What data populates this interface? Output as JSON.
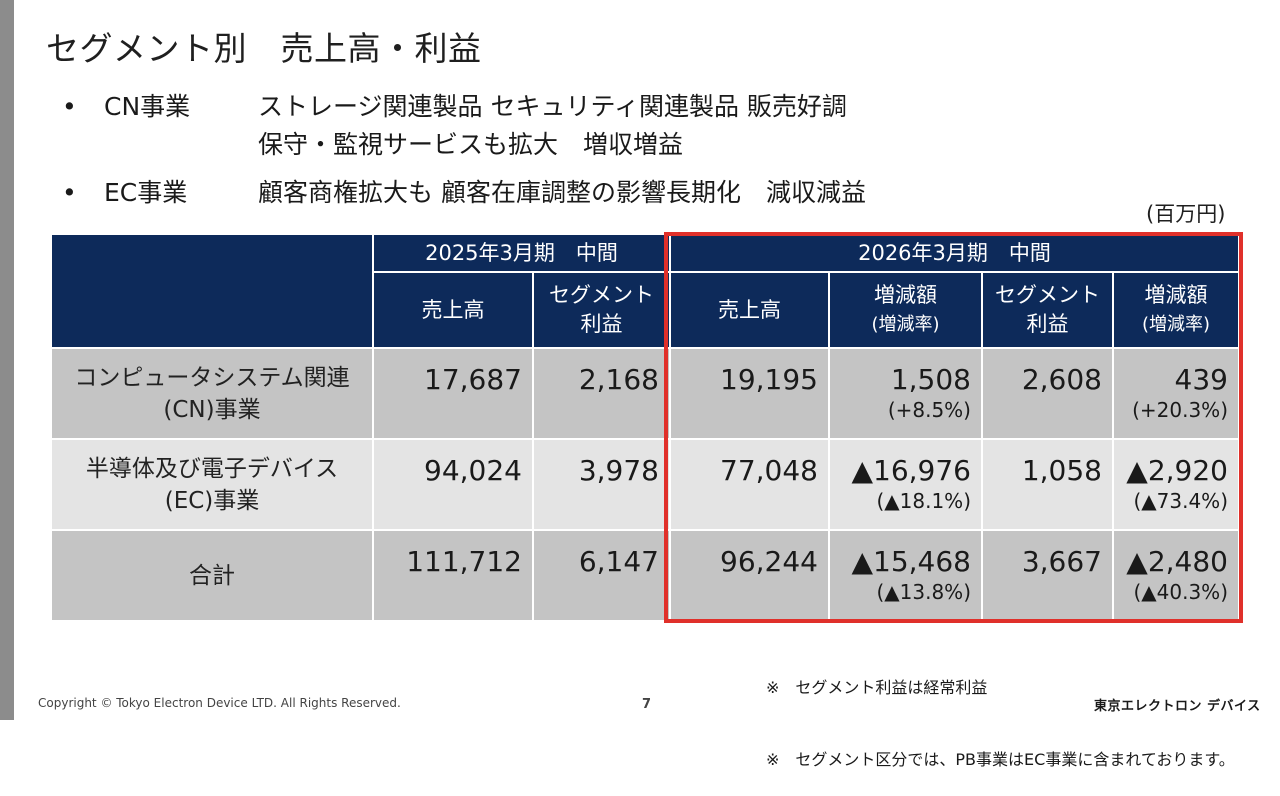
{
  "title": "セグメント別　売上高・利益",
  "bullets": [
    {
      "dot": "•",
      "segment": "CN事業",
      "lines": [
        "ストレージ関連製品 セキュリティ関連製品 販売好調",
        "保守・監視サービスも拡大　増収増益"
      ]
    },
    {
      "dot": "•",
      "segment": "EC事業",
      "lines": [
        "顧客商権拡大も 顧客在庫調整の影響長期化　減収減益"
      ]
    }
  ],
  "unit": "(百万円)",
  "table": {
    "period_2025": "2025年3月期　中間",
    "period_2026": "2026年3月期　中間",
    "col_sales": "売上高",
    "col_segment_profit_line1": "セグメント",
    "col_segment_profit_line2": "利益",
    "col_change_line1": "増減額",
    "col_change_line2": "(増減率)",
    "rows": [
      {
        "label_line1": "コンピュータシステム関連",
        "label_line2": "(CN)事業",
        "sales_2025": "17,687",
        "profit_2025": "2,168",
        "sales_2026": "19,195",
        "sales_change": "1,508",
        "sales_rate": "(+8.5%)",
        "profit_2026": "2,608",
        "profit_change": "439",
        "profit_rate": "(+20.3%)"
      },
      {
        "label_line1": "半導体及び電子デバイス",
        "label_line2": "(EC)事業",
        "sales_2025": "94,024",
        "profit_2025": "3,978",
        "sales_2026": "77,048",
        "sales_change": "▲16,976",
        "sales_rate": "(▲18.1%)",
        "profit_2026": "1,058",
        "profit_change": "▲2,920",
        "profit_rate": "(▲73.4%)"
      },
      {
        "label_line1": "合計",
        "label_line2": "",
        "sales_2025": "111,712",
        "profit_2025": "6,147",
        "sales_2026": "96,244",
        "sales_change": "▲15,468",
        "sales_rate": "(▲13.8%)",
        "profit_2026": "3,667",
        "profit_change": "▲2,480",
        "profit_rate": "(▲40.3%)"
      }
    ]
  },
  "notes": [
    "※　セグメント利益は経常利益",
    "※　セグメント区分では、PB事業はEC事業に含まれております。"
  ],
  "footer": {
    "copyright": "Copyright © Tokyo Electron Device LTD. All Rights Reserved.",
    "page": "7",
    "logo": "東京エレクトロン デバイス"
  },
  "colors": {
    "header_bg": "#0d2a5a",
    "highlight": "#e0302a",
    "row_dark": "#c4c4c4",
    "row_light": "#e4e4e4"
  }
}
